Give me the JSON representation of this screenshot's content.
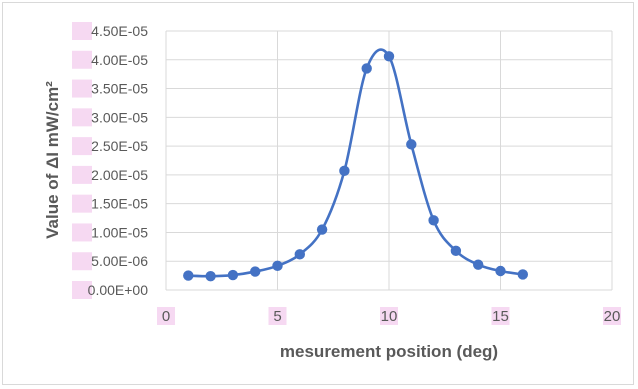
{
  "chart_data": {
    "type": "scatter",
    "title": "",
    "xlabel": "mesurement position (deg)",
    "ylabel": "Value of ΔI mW/cm²",
    "xlim": [
      0,
      20
    ],
    "ylim": [
      0,
      4.5e-05
    ],
    "x_ticks": [
      "0",
      "5",
      "10",
      "15",
      "20"
    ],
    "y_ticks": [
      "0.00E+00",
      "5.00E-06",
      "1.00E-05",
      "1.50E-05",
      "2.00E-05",
      "2.50E-05",
      "3.00E-05",
      "3.50E-05",
      "4.00E-05",
      "4.50E-05"
    ],
    "grid": true,
    "smooth_line": true,
    "color": "#4472c4",
    "series": [
      {
        "x": [
          1,
          2,
          3,
          4,
          5,
          6,
          7,
          8,
          9,
          10,
          11,
          12,
          13,
          14,
          15,
          16
        ],
        "y": [
          2.5e-06,
          2.4e-06,
          2.6e-06,
          3.2e-06,
          4.2e-06,
          6.2e-06,
          1.05e-05,
          2.07e-05,
          3.85e-05,
          4.06e-05,
          2.53e-05,
          1.21e-05,
          6.8e-06,
          4.4e-06,
          3.3e-06,
          2.7e-06
        ]
      }
    ]
  }
}
